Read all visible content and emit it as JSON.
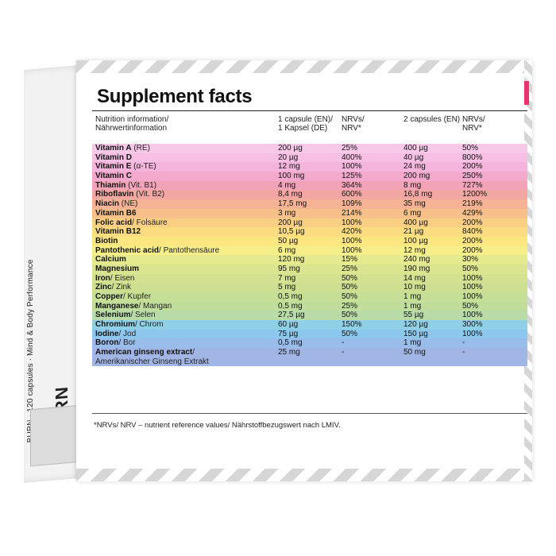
{
  "side_panel": {
    "vertical_text_small": "BURN · 120 capsules · Mind & Body Performance",
    "vertical_text_large": "BURN"
  },
  "title": "Supplement facts",
  "table": {
    "headers": {
      "nutrition": "Nutrition information/\nNährwertinformation",
      "dose1": "1 capsule (EN)/\n1 Kapsel (DE)",
      "nrv1": "NRVs/\nNRV*",
      "dose2": "2 capsules (EN)",
      "nrv2": "NRVs/\nNRV*"
    },
    "rows": [
      {
        "name": "Vitamin A",
        "sub": " (RE)",
        "v1": "200 µg",
        "n1": "25%",
        "v2": "400 µg",
        "n2": "50%",
        "color": "#f8c8e8"
      },
      {
        "name": "Vitamin D",
        "sub": "",
        "v1": "20 µg",
        "n1": "400%",
        "v2": "40 µg",
        "n2": "800%",
        "color": "#f6bfe3"
      },
      {
        "name": "Vitamin E",
        "sub": " (α-TE)",
        "v1": "12 mg",
        "n1": "100%",
        "v2": "24 mg",
        "n2": "200%",
        "color": "#f4b4db"
      },
      {
        "name": "Vitamin C",
        "sub": "",
        "v1": "100 mg",
        "n1": "125%",
        "v2": "200 mg",
        "n2": "250%",
        "color": "#f3a9cc"
      },
      {
        "name": "Thiamin",
        "sub": " (Vit. B1)",
        "v1": "4 mg",
        "n1": "364%",
        "v2": "8 mg",
        "n2": "727%",
        "color": "#f2a3b8"
      },
      {
        "name": "Riboflavin",
        "sub": " (Vit. B2)",
        "v1": "8,4 mg",
        "n1": "600%",
        "v2": "16,8 mg",
        "n2": "1200%",
        "color": "#f3a7a3"
      },
      {
        "name": "Niacin",
        "sub": " (NE)",
        "v1": "17,5 mg",
        "n1": "109%",
        "v2": "35 mg",
        "n2": "219%",
        "color": "#f5b294"
      },
      {
        "name": "Vitamin B6",
        "sub": "",
        "v1": "3 mg",
        "n1": "214%",
        "v2": "6 mg",
        "n2": "429%",
        "color": "#f7c08a"
      },
      {
        "name": "Folic acid",
        "sub": "/ Folsäure",
        "v1": "200 µg",
        "n1": "100%",
        "v2": "400 µg",
        "n2": "200%",
        "color": "#f9d083"
      },
      {
        "name": "Vitamin B12",
        "sub": "",
        "v1": "10,5 µg",
        "n1": "420%",
        "v2": "21 µg",
        "n2": "840%",
        "color": "#fbdc80"
      },
      {
        "name": "Biotin",
        "sub": "",
        "v1": "50 µg",
        "n1": "100%",
        "v2": "100 µg",
        "n2": "200%",
        "color": "#fbe680"
      },
      {
        "name": "Pantothenic acid",
        "sub": "/ Pantothensäure",
        "v1": "6 mg",
        "n1": "100%",
        "v2": "12 mg",
        "n2": "200%",
        "color": "#f6ee88"
      },
      {
        "name": "Calcium",
        "sub": "",
        "v1": "120 mg",
        "n1": "15%",
        "v2": "240 mg",
        "n2": "30%",
        "color": "#e6ea8e"
      },
      {
        "name": "Magnesium",
        "sub": "",
        "v1": "95 mg",
        "n1": "25%",
        "v2": "190 mg",
        "n2": "50%",
        "color": "#dbe58f"
      },
      {
        "name": "Iron",
        "sub": "/ Eisen",
        "v1": "7 mg",
        "n1": "50%",
        "v2": "14 mg",
        "n2": "100%",
        "color": "#d3e190"
      },
      {
        "name": "Zinc",
        "sub": "/ Zink",
        "v1": "5 mg",
        "n1": "50%",
        "v2": "10 mg",
        "n2": "100%",
        "color": "#cde092"
      },
      {
        "name": "Copper",
        "sub": "/ Kupfer",
        "v1": "0,5 mg",
        "n1": "50%",
        "v2": "1 mg",
        "n2": "100%",
        "color": "#c6df96"
      },
      {
        "name": "Manganese",
        "sub": "/ Mangan",
        "v1": "0,5 mg",
        "n1": "25%",
        "v2": "1 mg",
        "n2": "50%",
        "color": "#c1dd9c"
      },
      {
        "name": "Selenium",
        "sub": "/ Selen",
        "v1": "27,5 µg",
        "n1": "50%",
        "v2": "55 µg",
        "n2": "100%",
        "color": "#b8dba8"
      },
      {
        "name": "Chromium",
        "sub": "/ Chrom",
        "v1": "60 µg",
        "n1": "150%",
        "v2": "120 µg",
        "n2": "300%",
        "color": "#8fd0e6"
      },
      {
        "name": "Iodine",
        "sub": "/ Jod",
        "v1": "75 µg",
        "n1": "50%",
        "v2": "150 µg",
        "n2": "100%",
        "color": "#8cc8ee"
      },
      {
        "name": "Boron",
        "sub": "/ Bor",
        "v1": "0,5 mg",
        "n1": "-",
        "v2": "1 mg",
        "n2": "-",
        "color": "#98bdeb"
      },
      {
        "name": "American ginseng extract",
        "sub": "/",
        "sub2": "Amerikanischer Ginseng Extrakt",
        "v1": "25 mg",
        "n1": "-",
        "v2": "50 mg",
        "n2": "-",
        "color": "#a2b6e6"
      }
    ]
  },
  "footnote": "*NRVs/ NRV – nutrient reference values/ Nährstoffbezugswert nach LMIV."
}
